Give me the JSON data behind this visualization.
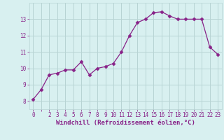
{
  "x": [
    0,
    1,
    2,
    3,
    4,
    5,
    6,
    7,
    8,
    9,
    10,
    11,
    12,
    13,
    14,
    15,
    16,
    17,
    18,
    19,
    20,
    21,
    22,
    23
  ],
  "y": [
    8.1,
    8.7,
    9.6,
    9.7,
    9.9,
    9.9,
    10.4,
    9.6,
    10.0,
    10.1,
    10.3,
    11.0,
    12.0,
    12.8,
    13.0,
    13.4,
    13.45,
    13.2,
    13.0,
    13.0,
    13.0,
    13.0,
    11.3,
    10.85
  ],
  "line_color": "#882288",
  "marker": "D",
  "marker_size": 2.5,
  "bg_color": "#d8f0f0",
  "grid_color": "#b8d4d4",
  "xlabel": "Windchill (Refroidissement éolien,°C)",
  "xlabel_color": "#882288",
  "xlabel_fontsize": 6.5,
  "ylabel_ticks": [
    8,
    9,
    10,
    11,
    12,
    13
  ],
  "xtick_labels": [
    "0",
    "",
    "2",
    "3",
    "4",
    "5",
    "6",
    "7",
    "8",
    "9",
    "10",
    "11",
    "12",
    "13",
    "14",
    "15",
    "16",
    "17",
    "18",
    "19",
    "20",
    "21",
    "22",
    "23"
  ],
  "tick_color": "#882288",
  "tick_fontsize": 5.5,
  "ylim": [
    7.5,
    14.0
  ],
  "xlim": [
    -0.5,
    23.5
  ]
}
